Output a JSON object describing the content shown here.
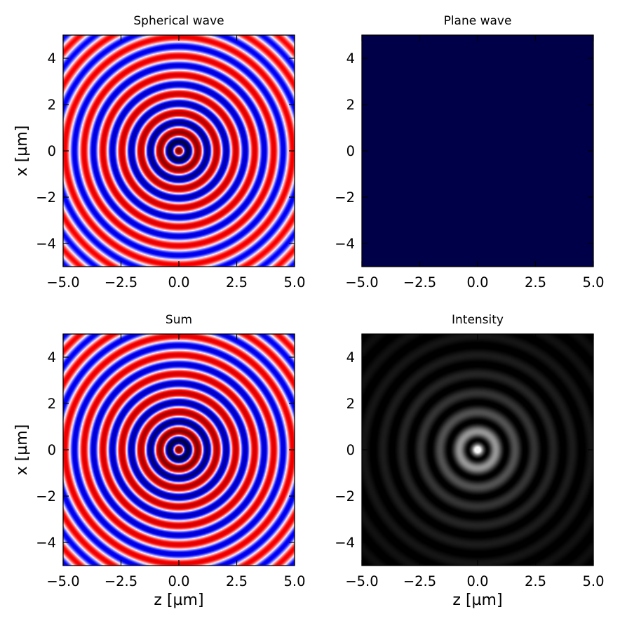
{
  "chart_data": [
    {
      "type": "heatmap",
      "title": "Spherical wave",
      "xlabel": "",
      "ylabel": "x [µm]",
      "xlim": [
        -5,
        5
      ],
      "ylim": [
        -5,
        5
      ],
      "xticks": [
        "−5.0",
        "−2.5",
        "0.0",
        "2.5",
        "5.0"
      ],
      "yticks": [
        "4",
        "2",
        "0",
        "−2",
        "−4"
      ],
      "colormap": "seismic",
      "colors": {
        "negative": "#00004d",
        "zero": "#ffffff",
        "positive": "#800000"
      },
      "field": "spherical wave, real part, ring period ~0.82 µm"
    },
    {
      "type": "heatmap",
      "title": "Plane wave",
      "xlabel": "",
      "ylabel": "",
      "xlim": [
        -5,
        5
      ],
      "ylim": [
        -5,
        5
      ],
      "xticks": [
        "−5.0",
        "−2.5",
        "0.0",
        "2.5",
        "5.0"
      ],
      "yticks": [
        "4",
        "2",
        "0",
        "−2",
        "−4"
      ],
      "colormap": "seismic",
      "colors": {
        "uniform": "#000048"
      },
      "field": "uniform"
    },
    {
      "type": "heatmap",
      "title": "Sum",
      "xlabel": "z [µm]",
      "ylabel": "x [µm]",
      "xlim": [
        -5,
        5
      ],
      "ylim": [
        -5,
        5
      ],
      "xticks": [
        "−5.0",
        "−2.5",
        "0.0",
        "2.5",
        "5.0"
      ],
      "yticks": [
        "4",
        "2",
        "0",
        "−2",
        "−4"
      ],
      "colormap": "seismic",
      "colors": {
        "negative": "#00004d",
        "zero": "#ffffff",
        "positive": "#800000"
      },
      "field": "spherical + plane wave"
    },
    {
      "type": "heatmap",
      "title": "Intensity",
      "xlabel": "z [µm]",
      "ylabel": "",
      "xlim": [
        -5,
        5
      ],
      "ylim": [
        -5,
        5
      ],
      "xticks": [
        "−5.0",
        "−2.5",
        "0.0",
        "2.5",
        "5.0"
      ],
      "yticks": [
        "4",
        "2",
        "0",
        "−2",
        "−4"
      ],
      "colormap": "gray",
      "colors": {
        "low": "#000000",
        "high": "#ffffff"
      },
      "field": "|sum|^2, bright center, dark fringes"
    }
  ]
}
